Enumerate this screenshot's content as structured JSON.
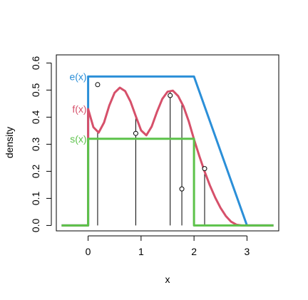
{
  "chart_data": {
    "type": "line",
    "title": "",
    "xlabel": "x",
    "ylabel": "density",
    "xlim": [
      -0.6,
      3.6
    ],
    "ylim": [
      -0.02,
      0.63
    ],
    "xticks": [
      0,
      1,
      2,
      3
    ],
    "xtick_labels": [
      "0",
      "1",
      "2",
      "3"
    ],
    "yticks": [
      0.0,
      0.1,
      0.2,
      0.3,
      0.4,
      0.5,
      0.6
    ],
    "ytick_labels": [
      "0.0",
      "0.1",
      "0.2",
      "0.3",
      "0.4",
      "0.5",
      "0.6"
    ],
    "grid": false,
    "series": [
      {
        "name": "e(x)",
        "color": "#2b8fd8",
        "x": [
          -0.5,
          0,
          0,
          2,
          3,
          3.5
        ],
        "y": [
          0,
          0,
          0.55,
          0.55,
          0,
          0
        ]
      },
      {
        "name": "f(x)",
        "color": "#d6506a",
        "x": [
          -0.5,
          0,
          0,
          0.1,
          0.2,
          0.3,
          0.4,
          0.5,
          0.6,
          0.7,
          0.8,
          0.9,
          1.0,
          1.1,
          1.2,
          1.3,
          1.4,
          1.5,
          1.6,
          1.7,
          1.8,
          1.9,
          2.0,
          2.1,
          2.2,
          2.3,
          2.4,
          2.5,
          2.6,
          2.7,
          2.8,
          2.9,
          3.0,
          3.5
        ],
        "y": [
          0,
          0,
          0.43,
          0.363,
          0.343,
          0.38,
          0.443,
          0.49,
          0.509,
          0.496,
          0.458,
          0.404,
          0.351,
          0.333,
          0.365,
          0.419,
          0.467,
          0.494,
          0.498,
          0.478,
          0.44,
          0.385,
          0.318,
          0.256,
          0.199,
          0.148,
          0.103,
          0.065,
          0.035,
          0.014,
          0.003,
          0.0,
          0.0,
          0.0
        ]
      },
      {
        "name": "s(x)",
        "color": "#5cc24a",
        "x": [
          -0.5,
          0,
          0,
          2,
          2,
          3.5
        ],
        "y": [
          0,
          0,
          0.32,
          0.32,
          0,
          0
        ]
      }
    ],
    "points": [
      {
        "x": 0.18,
        "y": 0.52
      },
      {
        "x": 0.9,
        "y": 0.34
      },
      {
        "x": 1.55,
        "y": 0.48
      },
      {
        "x": 1.77,
        "y": 0.135
      },
      {
        "x": 2.2,
        "y": 0.21
      }
    ],
    "line_labels": [
      {
        "text": "e(x)",
        "series": "e(x)"
      },
      {
        "text": "f(x)",
        "series": "f(x)"
      },
      {
        "text": "s(x)",
        "series": "s(x)"
      }
    ]
  }
}
